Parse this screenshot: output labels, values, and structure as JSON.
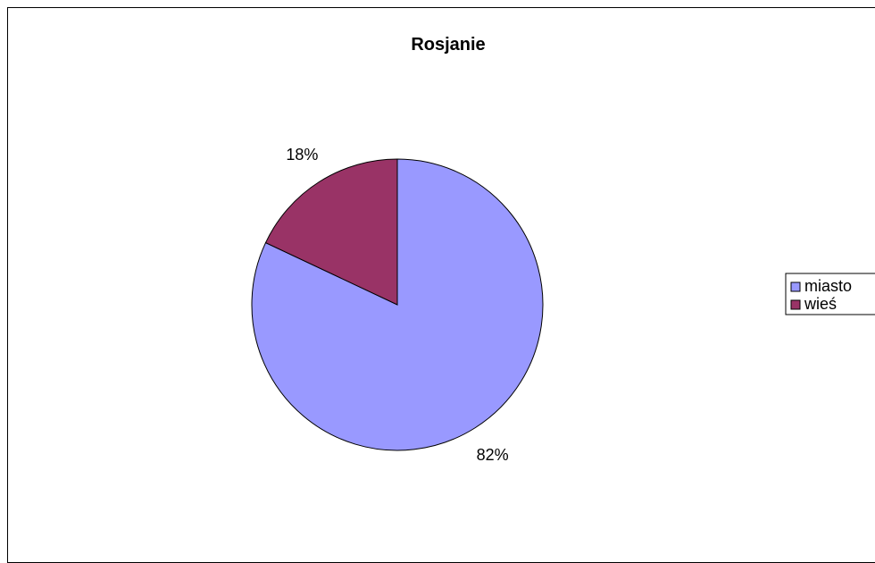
{
  "chart_data": {
    "type": "pie",
    "title": "Rosjanie",
    "categories": [
      "miasto",
      "wieś"
    ],
    "values": [
      82,
      18
    ],
    "data_labels": [
      "82%",
      "18%"
    ],
    "colors": [
      "#9999ff",
      "#993366"
    ],
    "legend_position": "right",
    "legend": [
      "miasto",
      "wieś"
    ]
  }
}
